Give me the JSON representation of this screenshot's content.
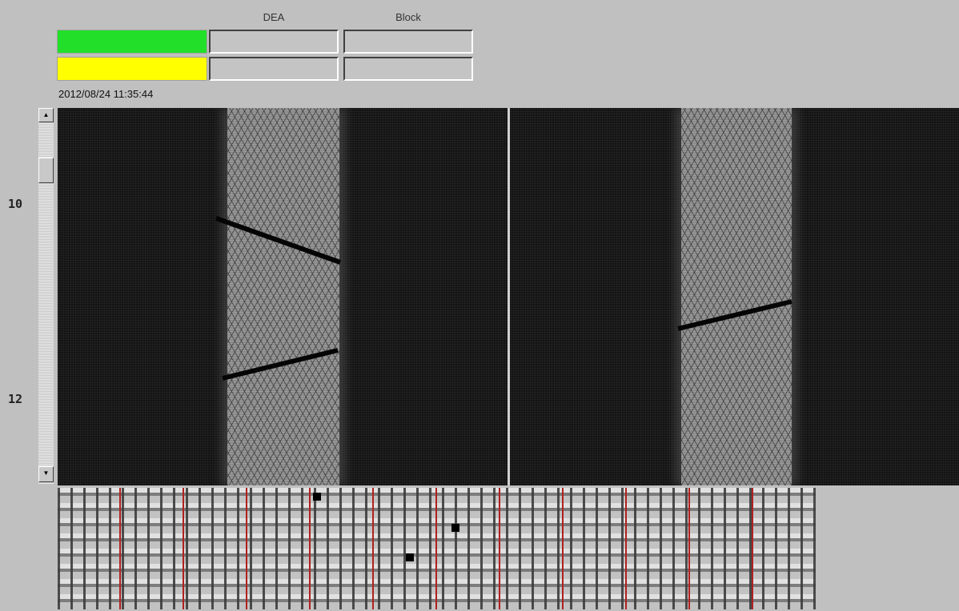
{
  "header": {
    "col1_label": "DEA",
    "col2_label": "Block"
  },
  "status_rows": [
    {
      "color": "#22e02a"
    },
    {
      "color": "#ffff00"
    }
  ],
  "timestamp": "2012/08/24 11:35:44",
  "row_labels": [
    "10",
    "12"
  ],
  "scrollbar": {
    "up_icon": "arrow-up-icon",
    "down_icon": "arrow-down-icon"
  },
  "colors": {
    "marker_line": "#b02020",
    "panel_bg": "#141414"
  }
}
